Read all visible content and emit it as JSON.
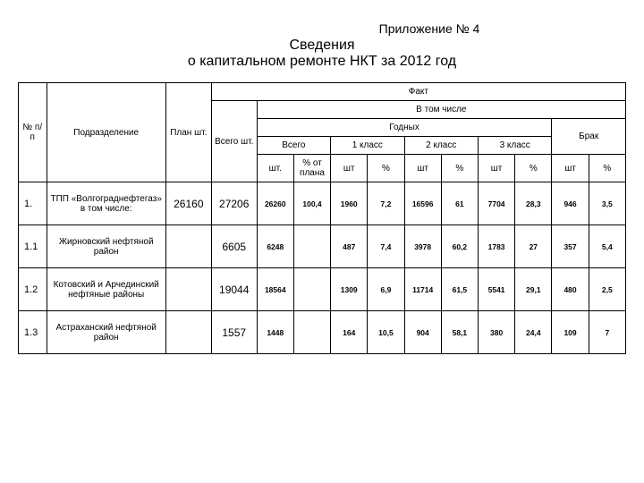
{
  "appendix": "Приложение № 4",
  "title_line1": "Сведения",
  "title_line2": "о капитальном ремонте НКТ за 2012 год",
  "headers": {
    "num": "№ п/п",
    "dept": "Подразделение",
    "plan": "План шт.",
    "fact": "Факт",
    "total": "Всего шт.",
    "including": "В том числе",
    "usable": "Годных",
    "reject": "Брак",
    "vsego": "Всего",
    "c1": "1 класс",
    "c2": "2 класс",
    "c3": "3 класс",
    "sht": "шт.",
    "sht2": "шт",
    "pct_plan": "% от плана",
    "pct": "%"
  },
  "rows": [
    {
      "num": "1.",
      "dept": "ТПП «Волгограднефтегаз» в том числе:",
      "plan": "26160",
      "total": "27206",
      "vsego_sht": "26260",
      "vsego_pct": "100,4",
      "c1_sht": "1960",
      "c1_pct": "7,2",
      "c2_sht": "16596",
      "c2_pct": "61",
      "c3_sht": "7704",
      "c3_pct": "28,3",
      "rej_sht": "946",
      "rej_pct": "3,5"
    },
    {
      "num": "1.1",
      "dept": "Жирновский нефтяной район",
      "plan": "",
      "total": "6605",
      "vsego_sht": "6248",
      "vsego_pct": "",
      "c1_sht": "487",
      "c1_pct": "7,4",
      "c2_sht": "3978",
      "c2_pct": "60,2",
      "c3_sht": "1783",
      "c3_pct": "27",
      "rej_sht": "357",
      "rej_pct": "5,4"
    },
    {
      "num": "1.2",
      "dept": "Котовский и Арчединский нефтяные районы",
      "plan": "",
      "total": "19044",
      "vsego_sht": "18564",
      "vsego_pct": "",
      "c1_sht": "1309",
      "c1_pct": "6,9",
      "c2_sht": "11714",
      "c2_pct": "61,5",
      "c3_sht": "5541",
      "c3_pct": "29,1",
      "rej_sht": "480",
      "rej_pct": "2,5"
    },
    {
      "num": "1.3",
      "dept": "Астраханский нефтяной район",
      "plan": "",
      "total": "1557",
      "vsego_sht": "1448",
      "vsego_pct": "",
      "c1_sht": "164",
      "c1_pct": "10,5",
      "c2_sht": "904",
      "c2_pct": "58,1",
      "c3_sht": "380",
      "c3_pct": "24,4",
      "rej_sht": "109",
      "rej_pct": "7"
    }
  ]
}
